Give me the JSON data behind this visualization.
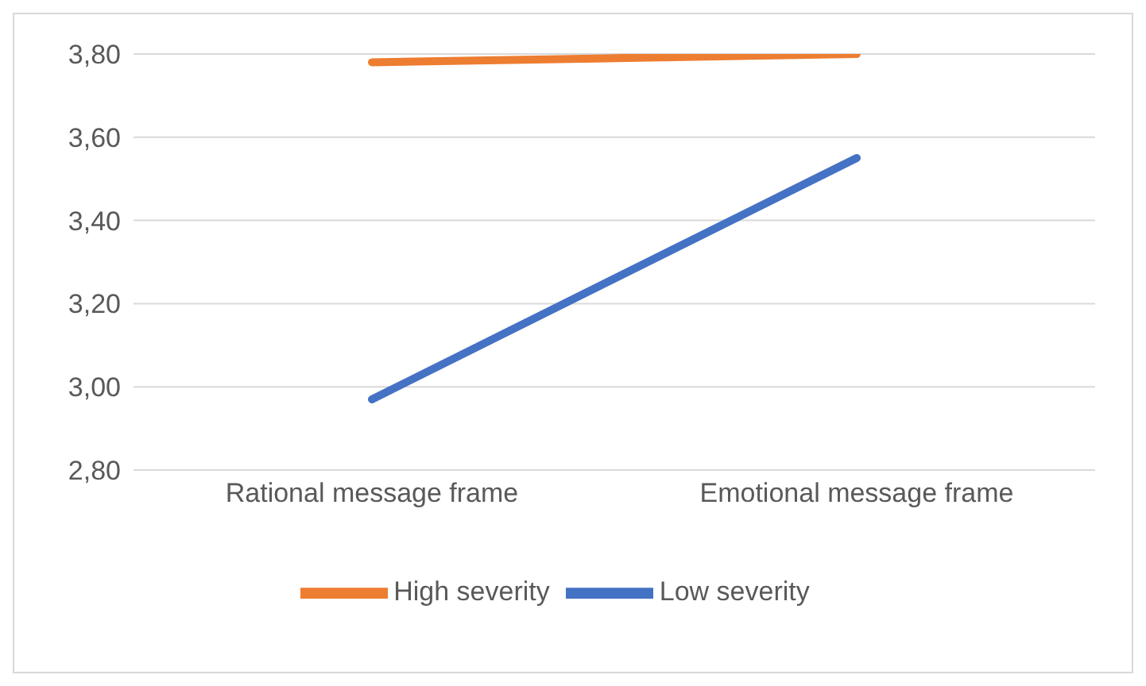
{
  "chart_data": {
    "type": "line",
    "categories": [
      "Rational message frame",
      "Emotional message frame"
    ],
    "series": [
      {
        "name": "Low severity",
        "color": "#4472c4",
        "values": [
          2.97,
          3.55
        ]
      },
      {
        "name": "High severity",
        "color": "#ed7d31",
        "values": [
          3.78,
          3.8
        ]
      }
    ],
    "ylim": [
      2.8,
      3.8
    ],
    "yticks": [
      {
        "value": 2.8,
        "label": "2,80"
      },
      {
        "value": 3,
        "label": "3,00"
      },
      {
        "value": 3.2,
        "label": "3,20"
      },
      {
        "value": 3.4,
        "label": "3,40"
      },
      {
        "value": 3.6,
        "label": "3,60"
      },
      {
        "value": 3.8,
        "label": "3,80"
      }
    ],
    "grid": "y",
    "legend": "bottom",
    "marker": "none",
    "line_style": "solid"
  }
}
